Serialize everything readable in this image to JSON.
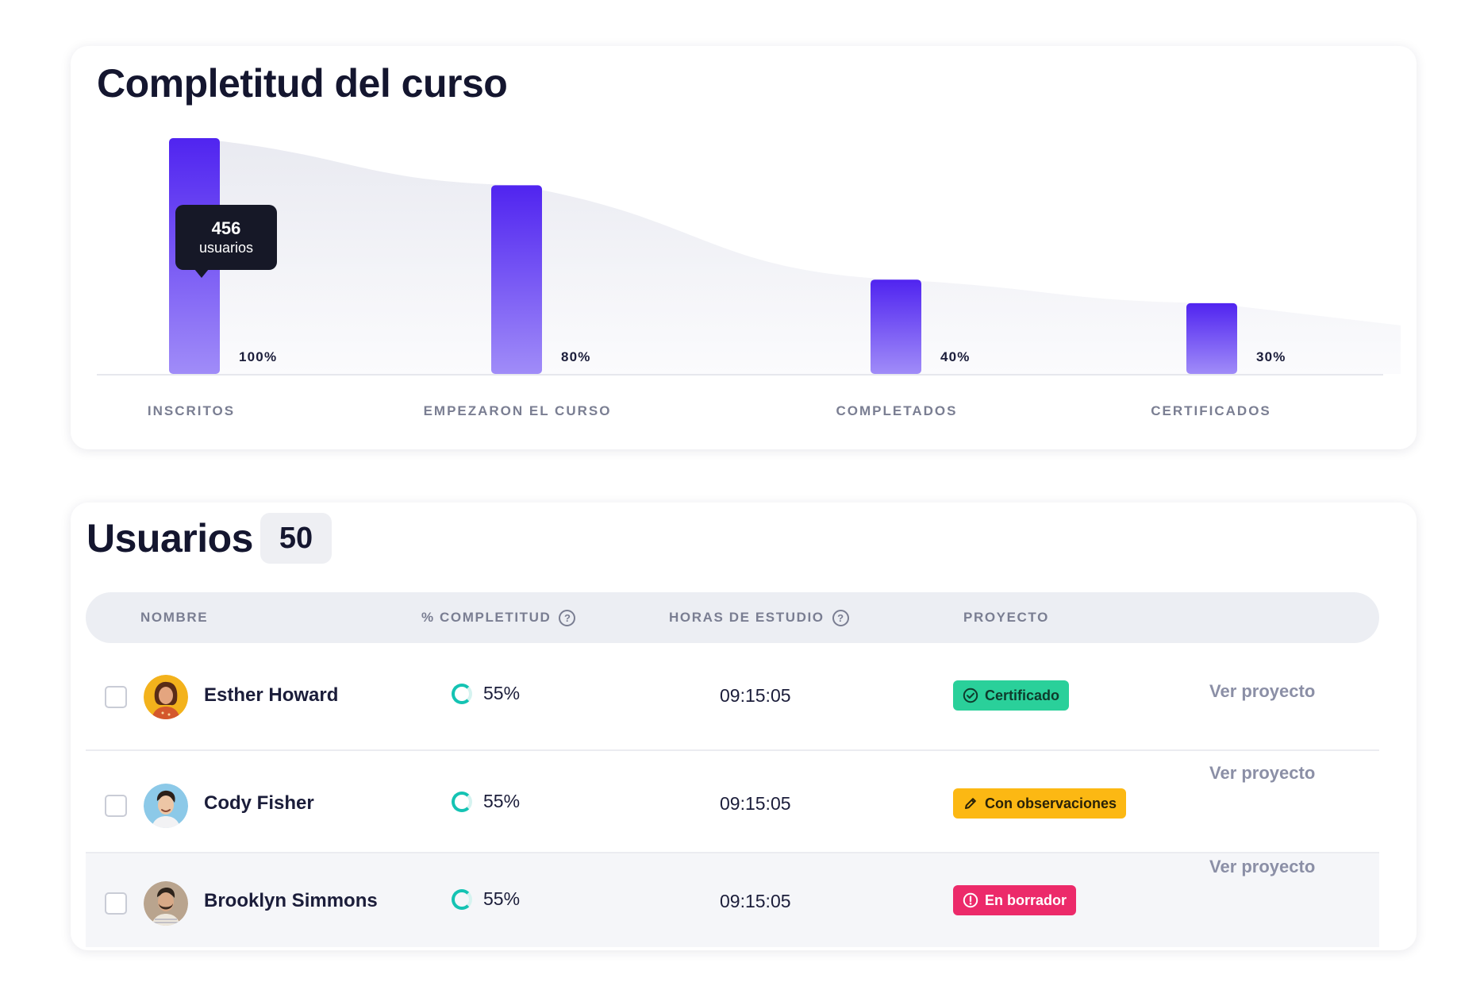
{
  "completion": {
    "title": "Completitud del curso",
    "tooltip": {
      "value": "456",
      "unit": "usuarios"
    }
  },
  "chart_data": {
    "type": "bar",
    "title": "Completitud del curso",
    "categories": [
      "INSCRITOS",
      "EMPEZARON EL CURSO",
      "COMPLETADOS",
      "CERTIFICADOS"
    ],
    "values": [
      100,
      80,
      40,
      30
    ],
    "value_labels": [
      "100%",
      "80%",
      "40%",
      "30%"
    ],
    "ylim": [
      0,
      100
    ],
    "grid": false,
    "bar_color_top": "#5024f0",
    "bar_color_bottom": "#a08cf8"
  },
  "users": {
    "title": "Usuarios",
    "count": "50",
    "columns": {
      "name": "NOMBRE",
      "completion": "% COMPLETITUD",
      "hours": "HORAS DE ESTUDIO",
      "project": "PROYECTO"
    },
    "help_glyph": "?",
    "rows": [
      {
        "name": "Esther Howard",
        "completion": "55%",
        "completion_fraction": 0.55,
        "hours": "09:15:05",
        "status": "Certificado",
        "status_icon": "check-circle-icon",
        "status_color": "#2ad09a",
        "status_text_color": "#0e3b2c",
        "link": "Ver proyecto",
        "avatar_bg": "#f3b21c"
      },
      {
        "name": "Cody Fisher",
        "completion": "55%",
        "completion_fraction": 0.55,
        "hours": "09:15:05",
        "status": "Con observaciones",
        "status_icon": "pencil-icon",
        "status_color": "#fcb813",
        "status_text_color": "#2a2208",
        "link": "Ver proyecto",
        "avatar_bg": "#8cc9e8"
      },
      {
        "name": "Brooklyn Simmons",
        "completion": "55%",
        "completion_fraction": 0.55,
        "hours": "09:15:05",
        "status": "En borrador",
        "status_icon": "alert-circle-icon",
        "status_color": "#ec2a6a",
        "status_text_color": "#ffffff",
        "link": "Ver proyecto",
        "avatar_bg": "#b9a48e"
      }
    ]
  }
}
